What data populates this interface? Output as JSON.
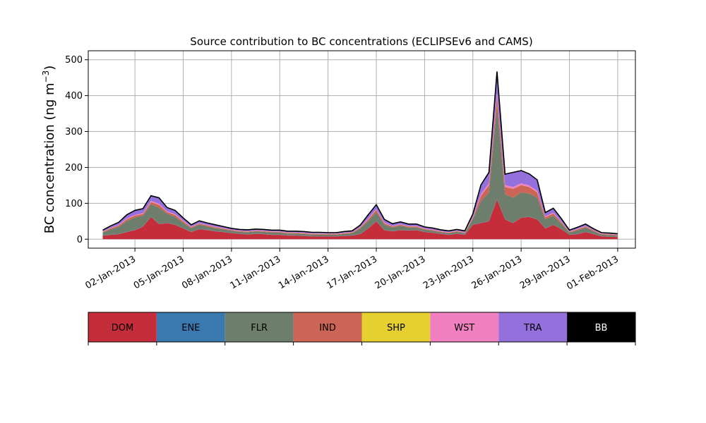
{
  "chart_data": {
    "type": "area",
    "stacked": true,
    "title": "Source contribution to BC concentrations (ECLIPSEv6 and CAMS)",
    "xlabel": "",
    "ylabel": "BC concentration (ng m",
    "ylabel_sup": "−3",
    "ylabel_close": ")",
    "ylim": [
      -25,
      525
    ],
    "yticks": [
      0,
      100,
      200,
      300,
      400,
      500
    ],
    "ytick_labels": [
      "0",
      "100",
      "200",
      "300",
      "400",
      "500"
    ],
    "xlim": [
      -1.9,
      32.1
    ],
    "xticks": [
      1,
      4,
      7,
      10,
      13,
      16,
      19,
      22,
      25,
      28,
      31
    ],
    "xtick_labels": [
      "02-Jan-2013",
      "05-Jan-2013",
      "08-Jan-2013",
      "11-Jan-2013",
      "14-Jan-2013",
      "17-Jan-2013",
      "20-Jan-2013",
      "23-Jan-2013",
      "26-Jan-2013",
      "29-Jan-2013",
      "01-Feb-2013"
    ],
    "grid": true,
    "x_unit": "days since 01-Jan-2013",
    "x": [
      -1.0,
      -0.5,
      0.0,
      0.5,
      1.0,
      1.5,
      2.0,
      2.5,
      3.0,
      3.5,
      4.0,
      4.5,
      5.0,
      5.5,
      6.0,
      6.5,
      7.0,
      7.5,
      8.0,
      8.5,
      9.0,
      9.5,
      10.0,
      10.5,
      11.0,
      11.5,
      12.0,
      12.5,
      13.0,
      13.5,
      14.0,
      14.5,
      15.0,
      15.5,
      16.0,
      16.5,
      17.0,
      17.5,
      18.0,
      18.5,
      19.0,
      19.5,
      20.0,
      20.5,
      21.0,
      21.5,
      22.0,
      22.5,
      23.0,
      23.5,
      24.0,
      24.5,
      25.0,
      25.5,
      26.0,
      26.5,
      27.0,
      27.5,
      28.0,
      28.5,
      29.0,
      29.5,
      30.0,
      30.5,
      31.0
    ],
    "series": [
      {
        "name": "DOM",
        "color": "#c62d3b",
        "values": [
          10,
          12,
          14,
          20,
          25,
          35,
          62,
          42,
          45,
          40,
          30,
          20,
          28,
          25,
          22,
          20,
          17,
          15,
          13,
          15,
          14,
          12,
          12,
          10,
          10,
          9,
          8,
          8,
          8,
          8,
          9,
          10,
          14,
          30,
          50,
          25,
          22,
          25,
          24,
          25,
          20,
          18,
          15,
          12,
          15,
          12,
          40,
          45,
          50,
          110,
          55,
          45,
          60,
          62,
          55,
          30,
          40,
          28,
          12,
          14,
          20,
          14,
          8,
          7,
          6
        ]
      },
      {
        "name": "ENE",
        "color": "#3a78b0",
        "values": [
          0.5,
          0.5,
          0.5,
          0.5,
          0.5,
          0.5,
          0.5,
          0.5,
          0.5,
          0.5,
          0.5,
          0.5,
          0.5,
          0.5,
          0.5,
          0.5,
          0.5,
          0.5,
          0.5,
          0.5,
          0.5,
          0.5,
          0.5,
          0.5,
          0.5,
          0.5,
          0.5,
          0.5,
          0.5,
          0.5,
          0.5,
          0.5,
          0.5,
          0.5,
          0.5,
          0.5,
          0.5,
          0.5,
          0.5,
          0.5,
          0.5,
          0.5,
          0.5,
          0.5,
          0.5,
          0.5,
          0.5,
          0.5,
          0.5,
          0.5,
          0.5,
          0.5,
          0.5,
          0.5,
          0.5,
          0.5,
          0.5,
          0.5,
          0.5,
          0.5,
          0.5,
          0.5,
          0.5,
          0.5,
          0.5
        ]
      },
      {
        "name": "FLR",
        "color": "#6d7f6c",
        "values": [
          8,
          15,
          20,
          30,
          35,
          30,
          35,
          45,
          25,
          22,
          15,
          10,
          12,
          10,
          8,
          7,
          6,
          5,
          6,
          6,
          6,
          6,
          6,
          5,
          5,
          5,
          4,
          4,
          4,
          4,
          5,
          6,
          15,
          20,
          25,
          15,
          10,
          12,
          8,
          7,
          6,
          5,
          4,
          4,
          5,
          4,
          15,
          60,
          80,
          260,
          70,
          70,
          70,
          65,
          60,
          25,
          25,
          15,
          6,
          10,
          12,
          8,
          4,
          4,
          3
        ]
      },
      {
        "name": "IND",
        "color": "#cc6555",
        "values": [
          2,
          3,
          4,
          5,
          5,
          5,
          6,
          8,
          5,
          5,
          4,
          3,
          3,
          3,
          3,
          2,
          2,
          2,
          2,
          2,
          2,
          2,
          2,
          2,
          2,
          2,
          2,
          2,
          2,
          2,
          2,
          2,
          3,
          5,
          6,
          4,
          3,
          3,
          3,
          3,
          2,
          2,
          2,
          2,
          2,
          2,
          4,
          15,
          20,
          30,
          20,
          25,
          20,
          18,
          15,
          6,
          6,
          4,
          2,
          3,
          3,
          2,
          2,
          2,
          2
        ]
      },
      {
        "name": "SHP",
        "color": "#e5d030",
        "values": [
          0.2,
          0.2,
          0.2,
          0.2,
          0.2,
          0.2,
          0.2,
          0.2,
          0.2,
          0.2,
          0.2,
          0.2,
          0.2,
          0.2,
          0.2,
          0.2,
          0.2,
          0.2,
          0.2,
          0.2,
          0.2,
          0.2,
          0.2,
          0.2,
          0.2,
          0.2,
          0.2,
          0.2,
          0.2,
          0.2,
          0.2,
          0.2,
          0.2,
          0.2,
          0.2,
          0.2,
          0.2,
          0.2,
          0.2,
          0.2,
          0.2,
          0.2,
          0.2,
          0.2,
          0.2,
          0.2,
          0.2,
          0.2,
          0.2,
          0.2,
          0.2,
          0.2,
          0.2,
          0.2,
          0.2,
          0.2,
          0.2,
          0.2,
          0.2,
          0.2,
          0.2,
          0.2,
          0.2,
          0.2,
          0.2
        ]
      },
      {
        "name": "WST",
        "color": "#f180c0",
        "values": [
          1,
          1,
          1,
          2,
          2,
          2,
          3,
          3,
          2,
          2,
          2,
          1,
          1,
          1,
          1,
          1,
          1,
          1,
          1,
          1,
          1,
          1,
          1,
          1,
          1,
          1,
          1,
          1,
          1,
          1,
          1,
          1,
          1,
          2,
          2,
          2,
          1,
          1,
          1,
          1,
          1,
          1,
          1,
          1,
          1,
          1,
          2,
          5,
          5,
          6,
          5,
          5,
          5,
          4,
          4,
          2,
          2,
          1,
          1,
          1,
          1,
          1,
          1,
          1,
          1
        ]
      },
      {
        "name": "TRA",
        "color": "#9370db",
        "values": [
          3,
          5,
          7,
          10,
          12,
          12,
          14,
          16,
          10,
          10,
          7,
          5,
          6,
          5,
          5,
          4,
          3,
          3,
          3,
          3,
          3,
          3,
          3,
          3,
          3,
          3,
          3,
          3,
          2,
          2,
          3,
          3,
          5,
          10,
          12,
          8,
          6,
          6,
          5,
          5,
          4,
          4,
          3,
          3,
          3,
          3,
          8,
          25,
          30,
          60,
          30,
          40,
          35,
          32,
          30,
          10,
          12,
          8,
          3,
          4,
          5,
          3,
          2,
          2,
          2
        ]
      },
      {
        "name": "BB",
        "color": "#000000",
        "values": [
          0.5,
          0.5,
          0.5,
          0.5,
          0.5,
          0.5,
          0.5,
          0.5,
          0.5,
          0.5,
          0.5,
          0.5,
          0.5,
          0.5,
          0.5,
          0.5,
          0.5,
          0.5,
          0.5,
          0.5,
          0.5,
          0.5,
          0.5,
          0.5,
          0.5,
          0.5,
          0.5,
          0.5,
          0.5,
          0.5,
          0.5,
          0.5,
          0.5,
          0.5,
          0.5,
          0.5,
          0.5,
          0.5,
          0.5,
          0.5,
          0.5,
          0.5,
          0.5,
          0.5,
          0.5,
          0.5,
          0.5,
          0.5,
          0.5,
          0.5,
          0.5,
          0.5,
          0.5,
          0.5,
          0.5,
          0.5,
          0.5,
          0.5,
          0.5,
          0.5,
          0.5,
          0.5,
          0.5,
          0.5,
          0.5
        ]
      }
    ],
    "legend": {
      "placement": "bottom-colorbar",
      "entries": [
        {
          "label": "DOM",
          "color": "#c62d3b",
          "text_color": "#000000"
        },
        {
          "label": "ENE",
          "color": "#3a78b0",
          "text_color": "#000000"
        },
        {
          "label": "FLR",
          "color": "#6d7f6c",
          "text_color": "#000000"
        },
        {
          "label": "IND",
          "color": "#cc6555",
          "text_color": "#000000"
        },
        {
          "label": "SHP",
          "color": "#e5d030",
          "text_color": "#000000"
        },
        {
          "label": "WST",
          "color": "#f180c0",
          "text_color": "#000000"
        },
        {
          "label": "TRA",
          "color": "#9370db",
          "text_color": "#000000"
        },
        {
          "label": "BB",
          "color": "#000000",
          "text_color": "#ffffff"
        }
      ]
    }
  }
}
